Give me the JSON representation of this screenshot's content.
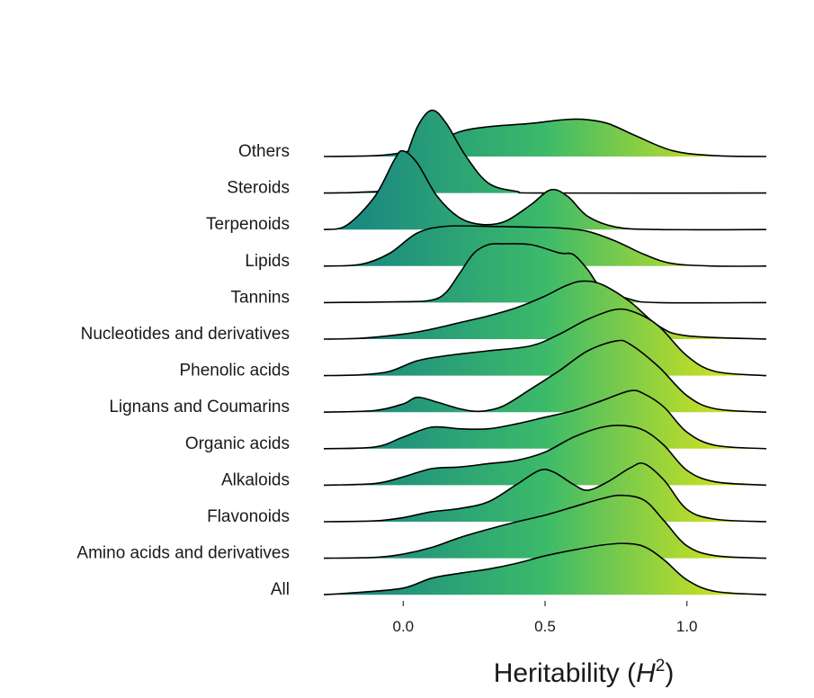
{
  "chart_data": {
    "type": "ridgeline",
    "xlabel": "Heritability (H²)",
    "xlabel_parts": {
      "main": "Heritability (",
      "var": "H",
      "sup": "2",
      "close": ")"
    },
    "xlim": [
      -0.28,
      1.28
    ],
    "x_ticks": [
      {
        "value": 0.0,
        "label": "0.0"
      },
      {
        "value": 0.5,
        "label": "0.5"
      },
      {
        "value": 1.0,
        "label": "1.0"
      }
    ],
    "fill_gradient": {
      "low": "#1b8a80",
      "mid": "#3cba6a",
      "high": "#d2e21f",
      "range": [
        -0.15,
        1.15
      ]
    },
    "curve_color": "#000000",
    "categories": [
      "All",
      "Amino acids and derivatives",
      "Flavonoids",
      "Alkaloids",
      "Organic acids",
      "Lignans and Coumarins",
      "Phenolic acids",
      "Nucleotides and derivatives",
      "Tannins",
      "Lipids",
      "Terpenoids",
      "Steroids",
      "Others"
    ],
    "series": [
      {
        "name": "All",
        "density": [
          [
            -0.28,
            0
          ],
          [
            -0.15,
            0.03
          ],
          [
            0.0,
            0.08
          ],
          [
            0.1,
            0.2
          ],
          [
            0.2,
            0.26
          ],
          [
            0.3,
            0.31
          ],
          [
            0.4,
            0.38
          ],
          [
            0.5,
            0.47
          ],
          [
            0.6,
            0.54
          ],
          [
            0.7,
            0.6
          ],
          [
            0.78,
            0.62
          ],
          [
            0.85,
            0.58
          ],
          [
            0.92,
            0.42
          ],
          [
            1.0,
            0.18
          ],
          [
            1.1,
            0.04
          ],
          [
            1.28,
            0
          ]
        ]
      },
      {
        "name": "Amino acids and derivatives",
        "density": [
          [
            -0.28,
            0
          ],
          [
            -0.1,
            0.01
          ],
          [
            0.0,
            0.05
          ],
          [
            0.1,
            0.13
          ],
          [
            0.2,
            0.25
          ],
          [
            0.3,
            0.35
          ],
          [
            0.4,
            0.44
          ],
          [
            0.5,
            0.52
          ],
          [
            0.6,
            0.62
          ],
          [
            0.7,
            0.72
          ],
          [
            0.77,
            0.76
          ],
          [
            0.85,
            0.7
          ],
          [
            0.92,
            0.45
          ],
          [
            1.0,
            0.15
          ],
          [
            1.1,
            0.03
          ],
          [
            1.28,
            0
          ]
        ]
      },
      {
        "name": "Flavonoids",
        "density": [
          [
            -0.28,
            0
          ],
          [
            -0.1,
            0.01
          ],
          [
            0.0,
            0.05
          ],
          [
            0.1,
            0.12
          ],
          [
            0.2,
            0.16
          ],
          [
            0.3,
            0.24
          ],
          [
            0.4,
            0.45
          ],
          [
            0.48,
            0.62
          ],
          [
            0.53,
            0.6
          ],
          [
            0.6,
            0.45
          ],
          [
            0.65,
            0.38
          ],
          [
            0.72,
            0.48
          ],
          [
            0.8,
            0.65
          ],
          [
            0.85,
            0.7
          ],
          [
            0.92,
            0.5
          ],
          [
            1.0,
            0.15
          ],
          [
            1.1,
            0.03
          ],
          [
            1.28,
            0
          ]
        ]
      },
      {
        "name": "Alkaloids",
        "density": [
          [
            -0.28,
            0
          ],
          [
            -0.1,
            0.02
          ],
          [
            0.0,
            0.1
          ],
          [
            0.1,
            0.2
          ],
          [
            0.2,
            0.22
          ],
          [
            0.3,
            0.26
          ],
          [
            0.4,
            0.3
          ],
          [
            0.5,
            0.4
          ],
          [
            0.6,
            0.58
          ],
          [
            0.7,
            0.7
          ],
          [
            0.78,
            0.72
          ],
          [
            0.85,
            0.66
          ],
          [
            0.92,
            0.48
          ],
          [
            1.0,
            0.18
          ],
          [
            1.1,
            0.04
          ],
          [
            1.28,
            0
          ]
        ]
      },
      {
        "name": "Organic acids",
        "density": [
          [
            -0.28,
            0
          ],
          [
            -0.1,
            0.02
          ],
          [
            0.0,
            0.14
          ],
          [
            0.1,
            0.26
          ],
          [
            0.2,
            0.24
          ],
          [
            0.3,
            0.24
          ],
          [
            0.4,
            0.3
          ],
          [
            0.5,
            0.38
          ],
          [
            0.6,
            0.46
          ],
          [
            0.7,
            0.58
          ],
          [
            0.8,
            0.7
          ],
          [
            0.85,
            0.66
          ],
          [
            0.92,
            0.5
          ],
          [
            1.0,
            0.2
          ],
          [
            1.1,
            0.04
          ],
          [
            1.28,
            0
          ]
        ]
      },
      {
        "name": "Lignans and Coumarins",
        "density": [
          [
            -0.28,
            0
          ],
          [
            -0.1,
            0.02
          ],
          [
            0.0,
            0.1
          ],
          [
            0.05,
            0.18
          ],
          [
            0.12,
            0.12
          ],
          [
            0.2,
            0.04
          ],
          [
            0.27,
            0.01
          ],
          [
            0.35,
            0.07
          ],
          [
            0.45,
            0.28
          ],
          [
            0.55,
            0.5
          ],
          [
            0.65,
            0.74
          ],
          [
            0.75,
            0.86
          ],
          [
            0.8,
            0.82
          ],
          [
            0.9,
            0.55
          ],
          [
            1.0,
            0.2
          ],
          [
            1.1,
            0.04
          ],
          [
            1.28,
            0
          ]
        ]
      },
      {
        "name": "Phenolic acids",
        "density": [
          [
            -0.28,
            0
          ],
          [
            -0.15,
            0.01
          ],
          [
            -0.05,
            0.05
          ],
          [
            0.05,
            0.18
          ],
          [
            0.15,
            0.24
          ],
          [
            0.3,
            0.3
          ],
          [
            0.45,
            0.36
          ],
          [
            0.55,
            0.5
          ],
          [
            0.65,
            0.68
          ],
          [
            0.75,
            0.8
          ],
          [
            0.82,
            0.76
          ],
          [
            0.9,
            0.6
          ],
          [
            1.0,
            0.24
          ],
          [
            1.1,
            0.05
          ],
          [
            1.28,
            0
          ]
        ]
      },
      {
        "name": "Nucleotides and derivatives",
        "density": [
          [
            -0.28,
            0
          ],
          [
            -0.15,
            0.01
          ],
          [
            0.0,
            0.06
          ],
          [
            0.1,
            0.12
          ],
          [
            0.2,
            0.2
          ],
          [
            0.3,
            0.28
          ],
          [
            0.4,
            0.38
          ],
          [
            0.5,
            0.52
          ],
          [
            0.57,
            0.64
          ],
          [
            0.63,
            0.7
          ],
          [
            0.7,
            0.66
          ],
          [
            0.8,
            0.45
          ],
          [
            0.9,
            0.16
          ],
          [
            1.0,
            0.04
          ],
          [
            1.28,
            0
          ]
        ]
      },
      {
        "name": "Tannins",
        "density": [
          [
            -0.28,
            0
          ],
          [
            0.0,
            0.01
          ],
          [
            0.1,
            0.03
          ],
          [
            0.15,
            0.12
          ],
          [
            0.2,
            0.36
          ],
          [
            0.25,
            0.6
          ],
          [
            0.3,
            0.7
          ],
          [
            0.35,
            0.71
          ],
          [
            0.45,
            0.7
          ],
          [
            0.55,
            0.6
          ],
          [
            0.6,
            0.58
          ],
          [
            0.65,
            0.4
          ],
          [
            0.7,
            0.18
          ],
          [
            0.8,
            0.04
          ],
          [
            0.9,
            0
          ],
          [
            1.28,
            0
          ]
        ]
      },
      {
        "name": "Lipids",
        "density": [
          [
            -0.28,
            0
          ],
          [
            -0.15,
            0.02
          ],
          [
            -0.05,
            0.15
          ],
          [
            0.05,
            0.4
          ],
          [
            0.15,
            0.48
          ],
          [
            0.3,
            0.48
          ],
          [
            0.45,
            0.47
          ],
          [
            0.55,
            0.46
          ],
          [
            0.65,
            0.42
          ],
          [
            0.75,
            0.3
          ],
          [
            0.85,
            0.14
          ],
          [
            0.95,
            0.03
          ],
          [
            1.1,
            0
          ],
          [
            1.28,
            0
          ]
        ]
      },
      {
        "name": "Terpenoids",
        "density": [
          [
            -0.28,
            0
          ],
          [
            -0.2,
            0.05
          ],
          [
            -0.1,
            0.4
          ],
          [
            -0.03,
            0.85
          ],
          [
            0.0,
            0.95
          ],
          [
            0.05,
            0.8
          ],
          [
            0.12,
            0.4
          ],
          [
            0.2,
            0.14
          ],
          [
            0.28,
            0.06
          ],
          [
            0.36,
            0.1
          ],
          [
            0.45,
            0.3
          ],
          [
            0.52,
            0.48
          ],
          [
            0.58,
            0.4
          ],
          [
            0.65,
            0.16
          ],
          [
            0.75,
            0.03
          ],
          [
            0.9,
            0
          ],
          [
            1.28,
            0
          ]
        ]
      },
      {
        "name": "Steroids",
        "density": [
          [
            -0.28,
            0
          ],
          [
            -0.15,
            0.01
          ],
          [
            -0.05,
            0.06
          ],
          [
            0.0,
            0.35
          ],
          [
            0.05,
            0.8
          ],
          [
            0.1,
            1.0
          ],
          [
            0.15,
            0.85
          ],
          [
            0.22,
            0.45
          ],
          [
            0.3,
            0.12
          ],
          [
            0.4,
            0.02
          ],
          [
            0.5,
            0
          ],
          [
            1.28,
            0
          ]
        ]
      },
      {
        "name": "Others",
        "density": [
          [
            -0.28,
            0
          ],
          [
            -0.1,
            0.01
          ],
          [
            0.0,
            0.05
          ],
          [
            0.1,
            0.15
          ],
          [
            0.2,
            0.3
          ],
          [
            0.3,
            0.36
          ],
          [
            0.45,
            0.4
          ],
          [
            0.55,
            0.44
          ],
          [
            0.63,
            0.45
          ],
          [
            0.72,
            0.4
          ],
          [
            0.82,
            0.25
          ],
          [
            0.95,
            0.07
          ],
          [
            1.1,
            0.01
          ],
          [
            1.28,
            0
          ]
        ]
      }
    ]
  }
}
